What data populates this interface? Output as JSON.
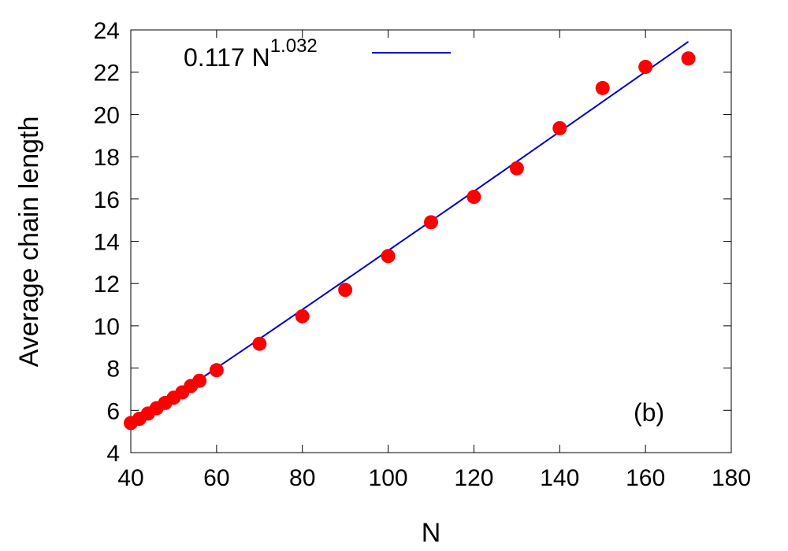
{
  "chart_data": {
    "type": "scatter",
    "xlabel": "N",
    "ylabel": "Average chain length",
    "xlim": [
      40,
      180
    ],
    "ylim": [
      4,
      24
    ],
    "xticks": [
      40,
      60,
      80,
      100,
      120,
      140,
      160,
      180
    ],
    "yticks": [
      4,
      6,
      8,
      10,
      12,
      14,
      16,
      18,
      20,
      22,
      24
    ],
    "grid": false,
    "legend_position": "top-left",
    "panel_label": "(b)",
    "colors": {
      "points": "#ff0000",
      "fit": "#0000cc"
    },
    "series": [
      {
        "kind": "points",
        "x": [
          40,
          42,
          44,
          46,
          48,
          50,
          52,
          54,
          56,
          60,
          70,
          80,
          90,
          100,
          110,
          120,
          130,
          140,
          150,
          160,
          170
        ],
        "y": [
          5.4,
          5.6,
          5.85,
          6.1,
          6.35,
          6.6,
          6.85,
          7.15,
          7.4,
          7.9,
          9.15,
          10.45,
          11.7,
          13.3,
          14.9,
          16.1,
          17.45,
          19.35,
          21.25,
          22.25,
          22.65
        ]
      },
      {
        "kind": "fit",
        "legend_prefix": "0.117 N",
        "legend_exponent": "1.032",
        "coefficient": 0.117,
        "exponent": 1.032,
        "x_range": [
          40,
          170
        ]
      }
    ]
  }
}
